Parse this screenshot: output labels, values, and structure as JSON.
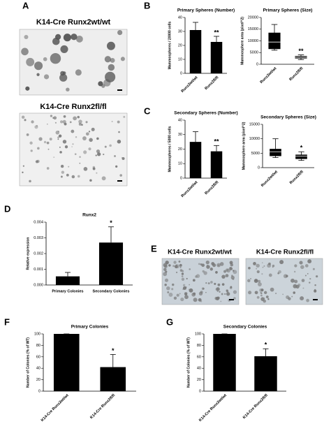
{
  "panel_labels": [
    "A",
    "B",
    "C",
    "D",
    "E",
    "F",
    "G"
  ],
  "image_panels": {
    "A": [
      "K14-Cre Runx2wt/wt",
      "K14-Cre Runx2fl/fl"
    ],
    "E": [
      "K14-Cre Runx2wt/wt",
      "K14-Cre Runx2fl/fl"
    ]
  },
  "chart_data": [
    {
      "type": "bar",
      "title": "Primary Spheres (Number)",
      "y_label": "Mammospheres / 20000 cells",
      "categories": [
        "Runx2wt/wt",
        "Runx2fl/fl"
      ],
      "values": [
        31,
        22.5
      ],
      "errors": [
        5.5,
        4
      ],
      "color": "#000000",
      "ylim": [
        0,
        40
      ],
      "yticks": [
        0,
        10,
        20,
        30,
        40
      ],
      "annotation": "**"
    },
    {
      "type": "box",
      "title": "Primary Spheres (Size)",
      "y_label": "Mammosphere area (pixel^2)",
      "categories": [
        "Runx2wt/wt",
        "Runx2fl/fl"
      ],
      "boxes": [
        {
          "min": 6000,
          "q1": 6500,
          "median": 9500,
          "q3": 13500,
          "max": 17000
        },
        {
          "min": 2000,
          "q1": 2500,
          "median": 3000,
          "q3": 3500,
          "max": 4000
        }
      ],
      "color": "#000000",
      "ylim": [
        0,
        20000
      ],
      "yticks": [
        0,
        5000,
        10000,
        15000,
        20000
      ],
      "annotation": "**"
    },
    {
      "type": "bar",
      "title": "Secondary Spheres (Number)",
      "y_label": "Mammospheres / 5000 cells",
      "categories": [
        "Runx2wt/wt",
        "Runx2fl/fl"
      ],
      "values": [
        25,
        18.5
      ],
      "errors": [
        7,
        4
      ],
      "color": "#000000",
      "ylim": [
        0,
        40
      ],
      "yticks": [
        0,
        10,
        20,
        30,
        40
      ],
      "annotation": "**"
    },
    {
      "type": "box",
      "title": "Secondary Spheres (Size)",
      "y_label": "Mammosphere area (pixel^2)",
      "categories": [
        "Runx2wt/wt",
        "Runx2fl/fl"
      ],
      "boxes": [
        {
          "min": 3500,
          "q1": 4000,
          "median": 5500,
          "q3": 6500,
          "max": 10000
        },
        {
          "min": 2500,
          "q1": 3000,
          "median": 4000,
          "q3": 4500,
          "max": 5500
        }
      ],
      "color": "#000000",
      "ylim": [
        0,
        15000
      ],
      "yticks": [
        0,
        5000,
        10000,
        15000
      ],
      "annotation": "*"
    },
    {
      "type": "bar",
      "title": "Runx2",
      "y_label": "Relative expression",
      "categories": [
        "Primary Colonies",
        "Secondary Colonies"
      ],
      "values": [
        0.00055,
        0.0027
      ],
      "errors": [
        0.00025,
        0.001
      ],
      "color": "#000000",
      "ylim": [
        0,
        0.004
      ],
      "yticks": [
        {
          "value": 0,
          "label": "0.000"
        },
        {
          "value": 0.001,
          "label": "0.001"
        },
        {
          "value": 0.002,
          "label": "0.002"
        },
        {
          "value": 0.003,
          "label": "0.003"
        },
        {
          "value": 0.004,
          "label": "0.004"
        }
      ],
      "annotation": "*"
    },
    {
      "type": "bar",
      "title": "Primary Colonies",
      "y_label": "Number of Colonies (% of WT)",
      "categories": [
        "K14-Cre Runx2wt/wt",
        "K14-Cre Runx2fl/fl"
      ],
      "values": [
        100,
        42
      ],
      "errors": [
        0,
        22
      ],
      "color": "#000000",
      "ylim": [
        0,
        100
      ],
      "yticks": [
        0,
        20,
        40,
        60,
        80,
        100
      ],
      "annotation": "*"
    },
    {
      "type": "bar",
      "title": "Secondary Colonies",
      "y_label": "Number of Colonies (% of WT)",
      "categories": [
        "K14-Cre Runx2wt/wt",
        "K14-Cre Runx2fl/fl"
      ],
      "values": [
        100,
        61
      ],
      "errors": [
        0,
        13
      ],
      "color": "#000000",
      "ylim": [
        0,
        100
      ],
      "yticks": [
        0,
        20,
        40,
        60,
        80,
        100
      ],
      "annotation": "*"
    }
  ]
}
